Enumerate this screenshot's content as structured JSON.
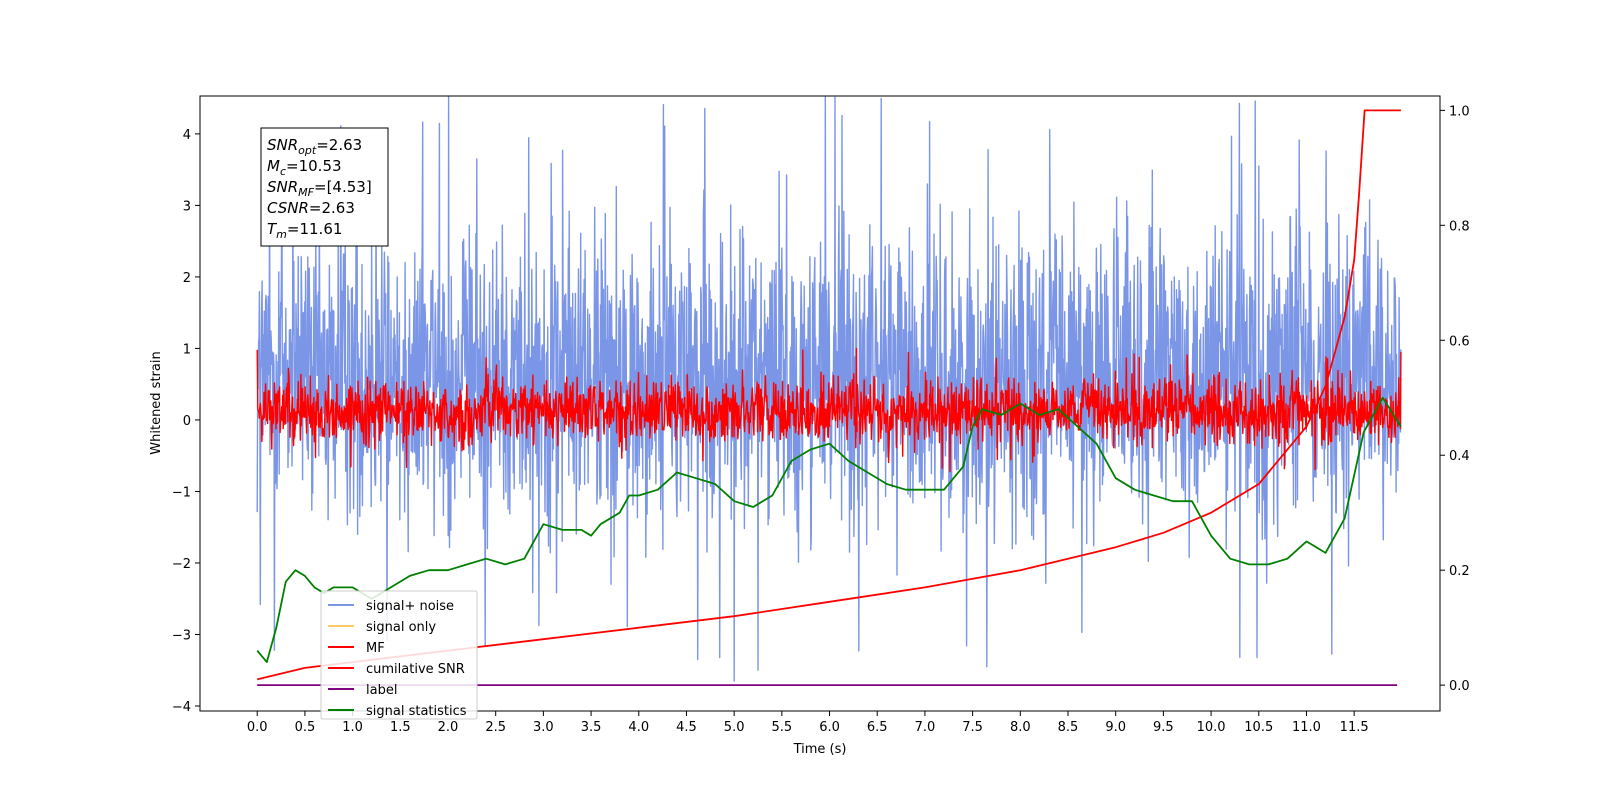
{
  "chart_data": {
    "type": "line",
    "xlabel": "Time (s)",
    "ylabel": "Whitened strain",
    "xlim": [
      -0.6,
      12.4
    ],
    "ylim": [
      -4.07,
      4.53
    ],
    "ylim_right": [
      -0.045,
      1.025
    ],
    "x_ticks": [
      "0.0",
      "0.5",
      "1.0",
      "1.5",
      "2.0",
      "2.5",
      "3.0",
      "3.5",
      "4.0",
      "4.5",
      "5.0",
      "5.5",
      "6.0",
      "6.5",
      "7.0",
      "7.5",
      "8.0",
      "8.5",
      "9.0",
      "9.5",
      "10.0",
      "10.5",
      "11.0",
      "11.5"
    ],
    "y_ticks_left": [
      "−4",
      "−3",
      "−2",
      "−1",
      "0",
      "1",
      "2",
      "3",
      "4"
    ],
    "y_ticks_right": [
      "0.0",
      "0.2",
      "0.4",
      "0.6",
      "0.8",
      "1.0"
    ],
    "grid": false,
    "legend_position": "lower-left",
    "legend": [
      {
        "label": "signal+ noise",
        "color": "#7b96e6"
      },
      {
        "label": "signal only",
        "color": "#ffc966"
      },
      {
        "label": "MF",
        "color": "#ff0000"
      },
      {
        "label": "cumilative SNR",
        "color": "#ff0000"
      },
      {
        "label": "label",
        "color": "#800080"
      },
      {
        "label": "signal statistics",
        "color": "#008000"
      }
    ],
    "annotation_box": [
      {
        "base": "SNR",
        "sub": "opt",
        "rest": "=2.63"
      },
      {
        "base": "M",
        "sub": "c",
        "rest": "=10.53"
      },
      {
        "base": "SNR",
        "sub": "MF",
        "rest": "=[4.53]"
      },
      {
        "base": "CSNR",
        "sub": "",
        "rest": "=2.63"
      },
      {
        "base": "T",
        "sub": "m",
        "rest": "=11.61"
      }
    ],
    "series": [
      {
        "name": "signal+ noise",
        "axis": "left",
        "kind": "noise",
        "color": "#7b96e6",
        "x_range": [
          0.0,
          11.99
        ],
        "typical_range": [
          -1.6,
          2.8
        ],
        "peaks": [
          [
            7.05,
            4.17
          ],
          [
            2.3,
            3.65
          ],
          [
            10.5,
            3.55
          ],
          [
            5.0,
            -3.65
          ],
          [
            5.25,
            -3.5
          ],
          [
            7.65,
            -3.45
          ],
          [
            4.62,
            -3.35
          ]
        ]
      },
      {
        "name": "MF",
        "axis": "left",
        "kind": "noise",
        "color": "#ff0000",
        "x_range": [
          0.0,
          11.99
        ],
        "typical_range": [
          -0.35,
          0.6
        ],
        "peaks": [
          [
            0.0,
            0.98
          ],
          [
            11.99,
            0.95
          ],
          [
            6.28,
            1.0
          ],
          [
            0.05,
            -0.3
          ]
        ]
      },
      {
        "name": "cumilative SNR",
        "axis": "right",
        "color": "#ff0000",
        "x": [
          0.0,
          0.5,
          1.0,
          2.0,
          3.0,
          4.0,
          5.0,
          6.0,
          7.0,
          8.0,
          9.0,
          9.5,
          10.0,
          10.5,
          11.0,
          11.2,
          11.4,
          11.5,
          11.55,
          11.61,
          11.99
        ],
        "y": [
          0.01,
          0.03,
          0.04,
          0.06,
          0.08,
          0.1,
          0.12,
          0.145,
          0.17,
          0.2,
          0.24,
          0.265,
          0.3,
          0.35,
          0.45,
          0.52,
          0.64,
          0.74,
          0.85,
          1.0,
          1.0
        ]
      },
      {
        "name": "label",
        "axis": "right",
        "color": "#800080",
        "x": [
          0.0,
          11.95
        ],
        "y": [
          0.0,
          0.0
        ]
      },
      {
        "name": "signal statistics",
        "axis": "right",
        "color": "#008000",
        "x": [
          0.0,
          0.1,
          0.2,
          0.3,
          0.4,
          0.5,
          0.6,
          0.7,
          0.8,
          1.0,
          1.2,
          1.4,
          1.6,
          1.8,
          2.0,
          2.2,
          2.4,
          2.6,
          2.8,
          3.0,
          3.2,
          3.4,
          3.5,
          3.6,
          3.8,
          3.9,
          4.0,
          4.2,
          4.4,
          4.6,
          4.8,
          5.0,
          5.2,
          5.4,
          5.6,
          5.8,
          6.0,
          6.2,
          6.4,
          6.6,
          6.8,
          7.0,
          7.2,
          7.4,
          7.5,
          7.6,
          7.8,
          8.0,
          8.2,
          8.4,
          8.6,
          8.8,
          9.0,
          9.2,
          9.4,
          9.6,
          9.8,
          10.0,
          10.2,
          10.4,
          10.6,
          10.8,
          11.0,
          11.2,
          11.4,
          11.6,
          11.8,
          11.99
        ],
        "y": [
          0.06,
          0.04,
          0.1,
          0.18,
          0.2,
          0.19,
          0.17,
          0.16,
          0.17,
          0.17,
          0.15,
          0.17,
          0.19,
          0.2,
          0.2,
          0.21,
          0.22,
          0.21,
          0.22,
          0.28,
          0.27,
          0.27,
          0.26,
          0.28,
          0.3,
          0.33,
          0.33,
          0.34,
          0.37,
          0.36,
          0.35,
          0.32,
          0.31,
          0.33,
          0.39,
          0.41,
          0.42,
          0.39,
          0.37,
          0.35,
          0.34,
          0.34,
          0.34,
          0.38,
          0.45,
          0.48,
          0.47,
          0.49,
          0.47,
          0.48,
          0.45,
          0.42,
          0.36,
          0.34,
          0.33,
          0.32,
          0.32,
          0.26,
          0.22,
          0.21,
          0.21,
          0.22,
          0.25,
          0.23,
          0.29,
          0.44,
          0.5,
          0.45
        ]
      }
    ]
  }
}
